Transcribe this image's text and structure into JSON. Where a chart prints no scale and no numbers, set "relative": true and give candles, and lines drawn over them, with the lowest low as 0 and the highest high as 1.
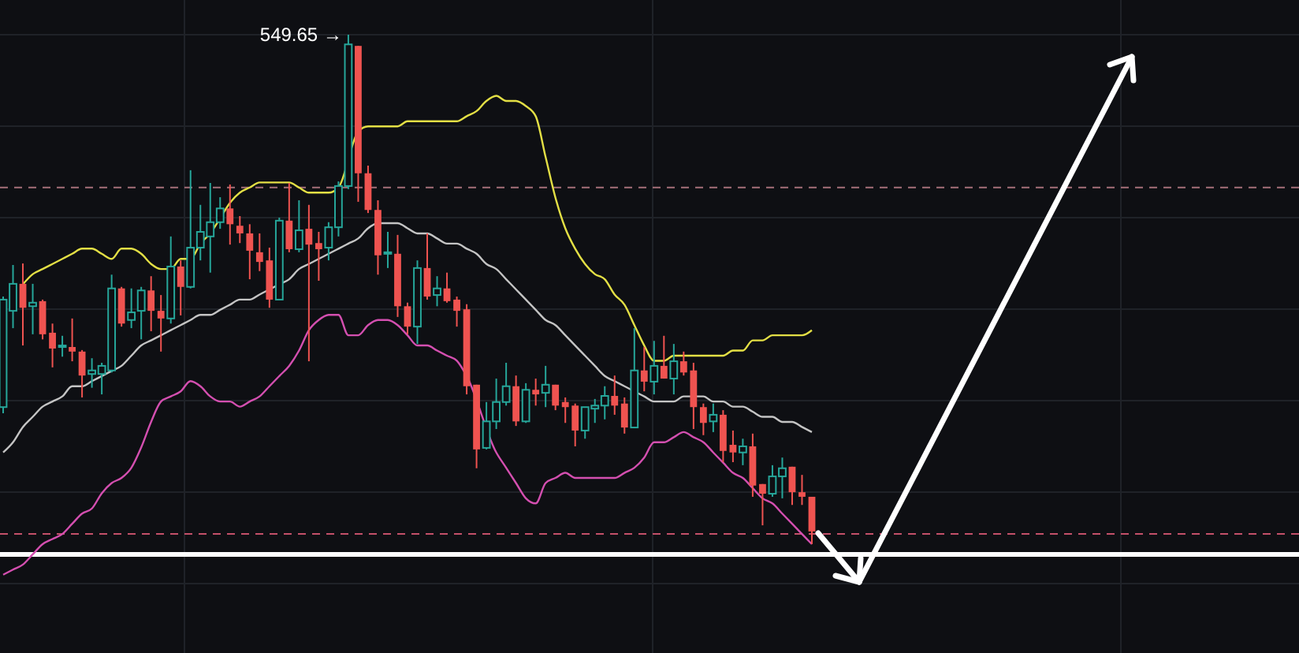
{
  "chart_data": {
    "type": "candlestick",
    "relative": true,
    "grid": true,
    "colors": [
      "#26a69a",
      "#26a69a",
      "#ef5350",
      "#26a69a",
      "#ef5350",
      "#ef5350",
      "#26a69a",
      "#ef5350",
      "#ef5350",
      "#26a69a",
      "#26a69a",
      "#26a69a",
      "#ef5350",
      "#26a69a",
      "#26a69a",
      "#ef5350",
      "#ef5350",
      "#26a69a",
      "#ef5350",
      "#26a69a",
      "#26a69a",
      "#26a69a",
      "#26a69a",
      "#ef5350",
      "#ef5350",
      "#ef5350",
      "#ef5350",
      "#ef5350",
      "#26a69a",
      "#ef5350",
      "#26a69a",
      "#ef5350",
      "#ef5350",
      "#26a69a",
      "#26a69a",
      "#26a69a",
      "#ef5350",
      "#ef5350",
      "#ef5350",
      "#26a69a",
      "#ef5350",
      "#ef5350",
      "#26a69a",
      "#ef5350",
      "#26a69a",
      "#ef5350",
      "#ef5350",
      "#ef5350",
      "#ef5350",
      "#26a69a",
      "#26a69a",
      "#26a69a",
      "#ef5350",
      "#26a69a",
      "#ef5350",
      "#26a69a",
      "#ef5350",
      "#ef5350",
      "#ef5350",
      "#26a69a",
      "#26a69a",
      "#26a69a",
      "#ef5350",
      "#ef5350",
      "#26a69a",
      "#ef5350",
      "#26a69a",
      "#ef5350",
      "#26a69a",
      "#ef5350",
      "#ef5350",
      "#ef5350",
      "#26a69a",
      "#ef5350",
      "#ef5350",
      "#26a69a",
      "#ef5350",
      "#ef5350",
      "#26a69a",
      "#26a69a",
      "#ef5350",
      "#ef5350",
      "#ef5350"
    ],
    "categories": [
      null,
      null,
      null,
      null,
      null,
      null,
      null,
      null,
      null,
      null,
      null,
      null,
      null,
      null,
      null,
      null,
      null,
      null,
      null,
      null,
      null,
      null,
      null,
      null,
      null,
      null,
      null,
      null,
      null,
      null,
      null,
      null,
      null,
      null,
      null,
      null,
      null,
      null,
      null,
      null,
      null,
      null,
      null,
      null,
      null,
      null,
      null,
      null,
      null,
      null,
      null,
      null,
      null,
      null,
      null,
      null,
      null,
      null,
      null,
      null,
      null,
      null,
      null,
      null,
      null,
      null,
      null,
      null,
      null,
      null,
      null,
      null,
      null,
      null,
      null,
      null,
      null,
      null,
      null,
      null,
      null,
      null,
      null
    ],
    "ohlc": [
      [
        0.269,
        0.486,
        0.257,
        0.48
      ],
      [
        0.458,
        0.548,
        0.424,
        0.511
      ],
      [
        0.511,
        0.551,
        0.39,
        0.464
      ],
      [
        0.467,
        0.511,
        0.412,
        0.474
      ],
      [
        0.477,
        0.48,
        0.402,
        0.412
      ],
      [
        0.415,
        0.433,
        0.347,
        0.384
      ],
      [
        0.387,
        0.409,
        0.368,
        0.39
      ],
      [
        0.387,
        0.443,
        0.359,
        0.378
      ],
      [
        0.378,
        0.381,
        0.288,
        0.331
      ],
      [
        0.334,
        0.365,
        0.307,
        0.341
      ],
      [
        0.334,
        0.356,
        0.294,
        0.35
      ],
      [
        0.341,
        0.529,
        0.337,
        0.502
      ],
      [
        0.502,
        0.505,
        0.427,
        0.433
      ],
      [
        0.44,
        0.502,
        0.424,
        0.455
      ],
      [
        0.458,
        0.505,
        0.402,
        0.498
      ],
      [
        0.498,
        0.526,
        0.418,
        0.458
      ],
      [
        0.458,
        0.489,
        0.378,
        0.443
      ],
      [
        0.443,
        0.604,
        0.433,
        0.545
      ],
      [
        0.545,
        0.557,
        0.449,
        0.505
      ],
      [
        0.505,
        0.734,
        0.502,
        0.582
      ],
      [
        0.582,
        0.666,
        0.557,
        0.613
      ],
      [
        0.604,
        0.709,
        0.533,
        0.632
      ],
      [
        0.632,
        0.681,
        0.619,
        0.659
      ],
      [
        0.659,
        0.706,
        0.588,
        0.628
      ],
      [
        0.625,
        0.644,
        0.591,
        0.61
      ],
      [
        0.61,
        0.628,
        0.52,
        0.576
      ],
      [
        0.573,
        0.61,
        0.536,
        0.554
      ],
      [
        0.557,
        0.582,
        0.464,
        0.48
      ],
      [
        0.48,
        0.641,
        0.48,
        0.635
      ],
      [
        0.635,
        0.709,
        0.573,
        0.579
      ],
      [
        0.579,
        0.675,
        0.573,
        0.616
      ],
      [
        0.619,
        0.666,
        0.359,
        0.588
      ],
      [
        0.591,
        0.613,
        0.517,
        0.579
      ],
      [
        0.582,
        0.632,
        0.557,
        0.622
      ],
      [
        0.622,
        0.712,
        0.604,
        0.703
      ],
      [
        0.703,
        1,
        0.697,
        0.981
      ],
      [
        0.978,
        0.978,
        0.672,
        0.728
      ],
      [
        0.728,
        0.743,
        0.65,
        0.656
      ],
      [
        0.656,
        0.675,
        0.529,
        0.567
      ],
      [
        0.57,
        0.613,
        0.542,
        0.573
      ],
      [
        0.57,
        0.607,
        0.446,
        0.467
      ],
      [
        0.467,
        0.474,
        0.412,
        0.427
      ],
      [
        0.427,
        0.557,
        0.393,
        0.542
      ],
      [
        0.542,
        0.61,
        0.48,
        0.486
      ],
      [
        0.489,
        0.526,
        0.467,
        0.502
      ],
      [
        0.502,
        0.533,
        0.474,
        0.477
      ],
      [
        0.48,
        0.486,
        0.427,
        0.458
      ],
      [
        0.461,
        0.471,
        0.294,
        0.31
      ],
      [
        0.313,
        0.313,
        0.149,
        0.186
      ],
      [
        0.189,
        0.279,
        0.186,
        0.241
      ],
      [
        0.241,
        0.325,
        0.226,
        0.279
      ],
      [
        0.279,
        0.356,
        0.272,
        0.31
      ],
      [
        0.31,
        0.331,
        0.232,
        0.241
      ],
      [
        0.241,
        0.316,
        0.238,
        0.303
      ],
      [
        0.303,
        0.325,
        0.272,
        0.294
      ],
      [
        0.297,
        0.35,
        0.269,
        0.313
      ],
      [
        0.313,
        0.313,
        0.263,
        0.272
      ],
      [
        0.279,
        0.288,
        0.238,
        0.269
      ],
      [
        0.272,
        0.276,
        0.192,
        0.223
      ],
      [
        0.223,
        0.269,
        0.207,
        0.269
      ],
      [
        0.266,
        0.285,
        0.238,
        0.272
      ],
      [
        0.272,
        0.31,
        0.245,
        0.291
      ],
      [
        0.291,
        0.331,
        0.254,
        0.272
      ],
      [
        0.276,
        0.288,
        0.217,
        0.229
      ],
      [
        0.229,
        0.424,
        0.229,
        0.341
      ],
      [
        0.341,
        0.387,
        0.3,
        0.319
      ],
      [
        0.319,
        0.399,
        0.294,
        0.35
      ],
      [
        0.35,
        0.409,
        0.325,
        0.325
      ],
      [
        0.325,
        0.393,
        0.294,
        0.359
      ],
      [
        0.359,
        0.378,
        0.331,
        0.337
      ],
      [
        0.341,
        0.356,
        0.226,
        0.269
      ],
      [
        0.269,
        0.276,
        0.214,
        0.238
      ],
      [
        0.241,
        0.276,
        0.22,
        0.254
      ],
      [
        0.254,
        0.263,
        0.161,
        0.183
      ],
      [
        0.195,
        0.223,
        0.161,
        0.18
      ],
      [
        0.18,
        0.207,
        0.155,
        0.192
      ],
      [
        0.192,
        0.217,
        0.093,
        0.115
      ],
      [
        0.118,
        0.118,
        0.037,
        0.099
      ],
      [
        0.099,
        0.155,
        0.093,
        0.133
      ],
      [
        0.133,
        0.17,
        0.09,
        0.149
      ],
      [
        0.152,
        0.152,
        0.077,
        0.102
      ],
      [
        0.102,
        0.136,
        0.077,
        0.093
      ],
      [
        0.093,
        0.093,
        0,
        0.025
      ]
    ],
    "series": [
      {
        "type": "line",
        "color": "#e3df45",
        "values": [
          null,
          null,
          0.51,
          0.53,
          0.54,
          0.55,
          0.56,
          0.57,
          0.58,
          0.58,
          0.57,
          0.56,
          0.58,
          0.58,
          0.57,
          0.55,
          0.54,
          0.54,
          0.56,
          0.56,
          0.59,
          0.61,
          0.64,
          0.67,
          0.69,
          0.7,
          0.71,
          0.71,
          0.71,
          0.71,
          0.7,
          0.69,
          0.69,
          0.69,
          0.7,
          null,
          0.81,
          0.82,
          0.82,
          0.82,
          0.82,
          0.83,
          0.83,
          0.83,
          0.83,
          0.83,
          0.83,
          0.84,
          0.85,
          0.87,
          0.88,
          0.87,
          0.87,
          0.86,
          0.84,
          0.76,
          0.68,
          0.62,
          0.58,
          0.55,
          0.53,
          0.52,
          0.49,
          0.47,
          0.43,
          0.39,
          0.36,
          0.36,
          0.37,
          0.37,
          0.37,
          0.37,
          0.37,
          0.37,
          0.38,
          0.38,
          0.4,
          0.4,
          0.41,
          0.41,
          0.41,
          0.41,
          0.42
        ]
      },
      {
        "type": "line",
        "color": "#c4c4c4",
        "values": [
          0.18,
          0.2,
          0.23,
          0.25,
          0.27,
          0.28,
          0.29,
          0.31,
          0.31,
          0.32,
          0.33,
          0.34,
          0.35,
          0.37,
          0.39,
          0.4,
          0.41,
          0.42,
          0.43,
          0.44,
          0.45,
          0.45,
          0.46,
          0.47,
          0.48,
          0.48,
          0.49,
          0.5,
          0.51,
          0.52,
          0.54,
          0.55,
          0.56,
          0.57,
          0.58,
          0.59,
          0.6,
          0.62,
          0.63,
          0.63,
          0.63,
          0.62,
          0.61,
          0.61,
          0.6,
          0.59,
          0.59,
          0.58,
          0.57,
          0.55,
          0.54,
          0.52,
          0.5,
          0.48,
          0.46,
          0.44,
          0.43,
          0.41,
          0.39,
          0.37,
          0.35,
          0.33,
          0.32,
          0.31,
          0.3,
          0.29,
          0.28,
          0.28,
          0.28,
          0.29,
          0.29,
          0.29,
          0.28,
          0.28,
          0.27,
          0.27,
          0.26,
          0.25,
          0.25,
          0.24,
          0.24,
          0.23,
          0.22
        ]
      },
      {
        "type": "line",
        "color": "#d44fb0",
        "values": [
          -0.06,
          -0.05,
          -0.04,
          -0.02,
          0,
          0.01,
          0.02,
          0.04,
          0.06,
          0.07,
          0.1,
          0.12,
          0.13,
          0.15,
          0.19,
          0.24,
          0.28,
          0.29,
          0.3,
          0.32,
          0.31,
          0.29,
          0.28,
          0.28,
          0.27,
          0.28,
          0.29,
          0.31,
          0.33,
          0.35,
          0.38,
          0.42,
          0.44,
          0.45,
          0.45,
          0.41,
          0.41,
          0.43,
          0.44,
          0.44,
          0.43,
          0.41,
          0.39,
          0.39,
          0.38,
          0.37,
          0.36,
          0.33,
          null,
          null,
          0.18,
          0.15,
          0.12,
          0.09,
          0.08,
          0.12,
          0.13,
          0.14,
          0.13,
          0.13,
          0.13,
          0.13,
          0.13,
          0.14,
          0.15,
          0.17,
          0.2,
          0.2,
          0.21,
          0.22,
          0.21,
          0.2,
          0.18,
          0.16,
          0.14,
          0.13,
          0.11,
          0.09,
          0.08,
          0.06,
          0.04,
          0.02,
          0
        ]
      }
    ],
    "ref_lines": [
      {
        "axis": "y",
        "value": 0.7,
        "color": "#a5707a",
        "line_style": "dashed"
      },
      {
        "axis": "y",
        "value": 0.02,
        "color": "#c4506a",
        "line_style": "dashed"
      },
      {
        "axis": "y",
        "value": -0.02,
        "color": "#ffffff",
        "line_style": "solid"
      }
    ],
    "annotations": [
      "549.65 →"
    ]
  }
}
